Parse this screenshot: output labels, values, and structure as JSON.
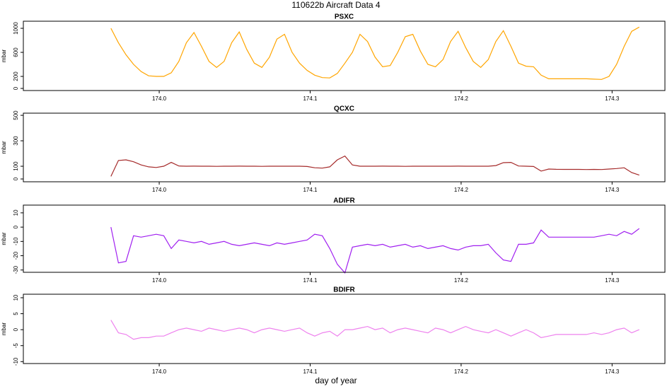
{
  "title": "110622b   Aircraft Data 4",
  "xlabel": "day of year",
  "chart_data": [
    {
      "type": "line",
      "title": "PSXC",
      "ylabel": "mbar",
      "color": "#ffa500",
      "x": [
        173.968,
        173.973,
        173.978,
        173.983,
        173.988,
        173.993,
        173.998,
        174.003,
        174.008,
        174.013,
        174.018,
        174.023,
        174.028,
        174.033,
        174.038,
        174.043,
        174.048,
        174.053,
        174.058,
        174.063,
        174.068,
        174.073,
        174.078,
        174.083,
        174.088,
        174.093,
        174.098,
        174.103,
        174.108,
        174.113,
        174.118,
        174.123,
        174.128,
        174.133,
        174.138,
        174.143,
        174.148,
        174.153,
        174.158,
        174.163,
        174.168,
        174.173,
        174.178,
        174.183,
        174.188,
        174.193,
        174.198,
        174.203,
        174.208,
        174.213,
        174.218,
        174.223,
        174.228,
        174.233,
        174.238,
        174.243,
        174.248,
        174.253,
        174.258,
        174.263,
        174.268,
        174.273,
        174.278,
        174.283,
        174.288,
        174.293,
        174.298,
        174.303,
        174.308,
        174.313,
        174.318
      ],
      "values": [
        1000,
        760,
        560,
        400,
        280,
        210,
        200,
        200,
        260,
        450,
        760,
        930,
        700,
        450,
        350,
        450,
        760,
        940,
        650,
        420,
        350,
        520,
        820,
        900,
        600,
        420,
        300,
        220,
        180,
        175,
        250,
        420,
        600,
        900,
        780,
        520,
        360,
        380,
        600,
        860,
        900,
        620,
        400,
        360,
        480,
        780,
        950,
        680,
        450,
        350,
        480,
        780,
        960,
        700,
        420,
        370,
        360,
        220,
        160,
        160,
        160,
        160,
        160,
        160,
        155,
        150,
        200,
        400,
        700,
        950,
        1020
      ],
      "xlim": [
        173.91,
        174.335
      ],
      "xticks": [
        {
          "value": 174,
          "label": "174.0"
        },
        174.1,
        174.2,
        174.3
      ],
      "ylim": [
        -35,
        1118
      ],
      "yticks": [
        0,
        200,
        600,
        1000
      ]
    },
    {
      "type": "line",
      "title": "QCXC",
      "ylabel": "mbar",
      "color": "#a52a2a",
      "x": [
        173.968,
        173.973,
        173.978,
        173.983,
        173.988,
        173.993,
        173.998,
        174.003,
        174.008,
        174.013,
        174.018,
        174.023,
        174.028,
        174.033,
        174.038,
        174.043,
        174.048,
        174.053,
        174.058,
        174.063,
        174.068,
        174.073,
        174.078,
        174.083,
        174.088,
        174.093,
        174.098,
        174.103,
        174.108,
        174.113,
        174.118,
        174.123,
        174.128,
        174.133,
        174.138,
        174.143,
        174.148,
        174.153,
        174.158,
        174.163,
        174.168,
        174.173,
        174.178,
        174.183,
        174.188,
        174.193,
        174.198,
        174.203,
        174.208,
        174.213,
        174.218,
        174.223,
        174.228,
        174.233,
        174.238,
        174.243,
        174.248,
        174.253,
        174.258,
        174.263,
        174.268,
        174.273,
        174.278,
        174.283,
        174.288,
        174.293,
        174.298,
        174.303,
        174.308,
        174.313,
        174.318
      ],
      "values": [
        20,
        145,
        150,
        135,
        110,
        95,
        90,
        100,
        130,
        102,
        100,
        101,
        100,
        100,
        99,
        100,
        100,
        101,
        100,
        100,
        99,
        100,
        100,
        100,
        100,
        100,
        98,
        88,
        85,
        95,
        150,
        180,
        110,
        100,
        100,
        100,
        101,
        100,
        100,
        99,
        100,
        100,
        100,
        100,
        100,
        100,
        101,
        100,
        100,
        100,
        100,
        105,
        128,
        130,
        102,
        100,
        98,
        62,
        78,
        76,
        75,
        75,
        75,
        74,
        75,
        74,
        78,
        82,
        88,
        50,
        30
      ],
      "xlim": [
        173.91,
        174.335
      ],
      "xticks": [
        {
          "value": 174,
          "label": "174.0"
        },
        174.1,
        174.2,
        174.3
      ],
      "ylim": [
        -22,
        517
      ],
      "yticks": [
        0,
        100,
        300,
        500
      ]
    },
    {
      "type": "line",
      "title": "ADIFR",
      "ylabel": "mbar",
      "color": "#a020f0",
      "x": [
        173.968,
        173.973,
        173.978,
        173.983,
        173.988,
        173.993,
        173.998,
        174.003,
        174.008,
        174.013,
        174.018,
        174.023,
        174.028,
        174.033,
        174.038,
        174.043,
        174.048,
        174.053,
        174.058,
        174.063,
        174.068,
        174.073,
        174.078,
        174.083,
        174.088,
        174.093,
        174.098,
        174.103,
        174.108,
        174.113,
        174.118,
        174.123,
        174.128,
        174.133,
        174.138,
        174.143,
        174.148,
        174.153,
        174.158,
        174.163,
        174.168,
        174.173,
        174.178,
        174.183,
        174.188,
        174.193,
        174.198,
        174.203,
        174.208,
        174.213,
        174.218,
        174.223,
        174.228,
        174.233,
        174.238,
        174.243,
        174.248,
        174.253,
        174.258,
        174.263,
        174.268,
        174.273,
        174.278,
        174.283,
        174.288,
        174.293,
        174.298,
        174.303,
        174.308,
        174.313,
        174.318
      ],
      "values": [
        0,
        -25,
        -24,
        -6,
        -7,
        -6,
        -5,
        -6,
        -15,
        -9,
        -10,
        -11,
        -10,
        -12,
        -11,
        -10,
        -12,
        -13,
        -12,
        -11,
        -12,
        -13,
        -11,
        -12,
        -11,
        -10,
        -9,
        -5,
        -6,
        -15,
        -26,
        -32,
        -14,
        -13,
        -12,
        -13,
        -12,
        -14,
        -13,
        -12,
        -14,
        -13,
        -15,
        -14,
        -13,
        -15,
        -16,
        -14,
        -13,
        -13,
        -12,
        -18,
        -23,
        -24,
        -12,
        -12,
        -11,
        -2,
        -7,
        -7,
        -7,
        -7,
        -7,
        -7,
        -7,
        -6,
        -5,
        -6,
        -3,
        -5,
        -1
      ],
      "xlim": [
        173.91,
        174.335
      ],
      "xticks": [
        {
          "value": 174,
          "label": "174.0"
        },
        174.1,
        174.2,
        174.3
      ],
      "ylim": [
        -31.6,
        15.4
      ],
      "yticks": [
        10,
        0,
        -10,
        -20,
        -30
      ]
    },
    {
      "type": "line",
      "title": "BDIFR",
      "ylabel": "mbar",
      "color": "#ee82ee",
      "x": [
        173.968,
        173.973,
        173.978,
        173.983,
        173.988,
        173.993,
        173.998,
        174.003,
        174.008,
        174.013,
        174.018,
        174.023,
        174.028,
        174.033,
        174.038,
        174.043,
        174.048,
        174.053,
        174.058,
        174.063,
        174.068,
        174.073,
        174.078,
        174.083,
        174.088,
        174.093,
        174.098,
        174.103,
        174.108,
        174.113,
        174.118,
        174.123,
        174.128,
        174.133,
        174.138,
        174.143,
        174.148,
        174.153,
        174.158,
        174.163,
        174.168,
        174.173,
        174.178,
        174.183,
        174.188,
        174.193,
        174.198,
        174.203,
        174.208,
        174.213,
        174.218,
        174.223,
        174.228,
        174.233,
        174.238,
        174.243,
        174.248,
        174.253,
        174.258,
        174.263,
        174.268,
        174.273,
        174.278,
        174.283,
        174.288,
        174.293,
        174.298,
        174.303,
        174.308,
        174.313,
        174.318
      ],
      "values": [
        3,
        -1,
        -1.5,
        -3,
        -2.5,
        -2.5,
        -2,
        -2,
        -1,
        0,
        0.5,
        0,
        -0.5,
        0.5,
        0,
        -0.5,
        0,
        0.5,
        0,
        -1,
        0,
        0.5,
        0,
        -0.5,
        0,
        0.5,
        -1,
        -2,
        -1,
        -0.5,
        -2,
        0,
        0,
        0.5,
        1,
        0,
        0.5,
        -1,
        0,
        0.5,
        0,
        -0.5,
        -1,
        0.5,
        0,
        -1,
        0,
        1,
        0,
        -0.5,
        -1,
        0,
        -1,
        -2,
        -1,
        0,
        -1,
        -2.5,
        -2,
        -1.5,
        -1.5,
        -1.5,
        -1.5,
        -1.5,
        -1,
        -1.5,
        -1,
        0,
        0.5,
        -1,
        0
      ],
      "xlim": [
        173.91,
        174.335
      ],
      "xticks": [
        {
          "value": 174,
          "label": "174.0"
        },
        174.1,
        174.2,
        174.3
      ],
      "ylim": [
        -10.6,
        11.1
      ],
      "yticks": [
        10,
        5,
        0,
        -5,
        -10
      ]
    }
  ]
}
